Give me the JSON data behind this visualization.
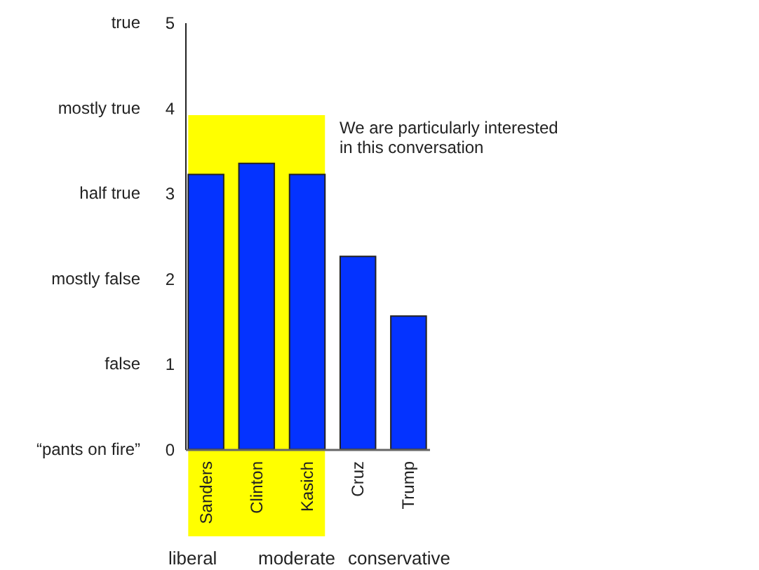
{
  "chart_data": {
    "type": "bar",
    "categories": [
      "Sanders",
      "Clinton",
      "Kasich",
      "Cruz",
      "Trump"
    ],
    "values": [
      3.22,
      3.35,
      3.22,
      2.26,
      1.56
    ],
    "color": "#0433ff",
    "ylim": [
      0,
      5
    ],
    "yticks": [
      0,
      1,
      2,
      3,
      4,
      5
    ],
    "bands": [
      {
        "axis": "x",
        "from": "Sanders",
        "to": "Kasich",
        "label": "We are particularly interested in this conversation",
        "color": "#ffff00"
      }
    ],
    "annotations": [
      "“pants on fire”",
      "false",
      "mostly false",
      "half true",
      "mostly true",
      "true",
      "liberal",
      "moderate",
      "conservative"
    ],
    "grid": false
  }
}
